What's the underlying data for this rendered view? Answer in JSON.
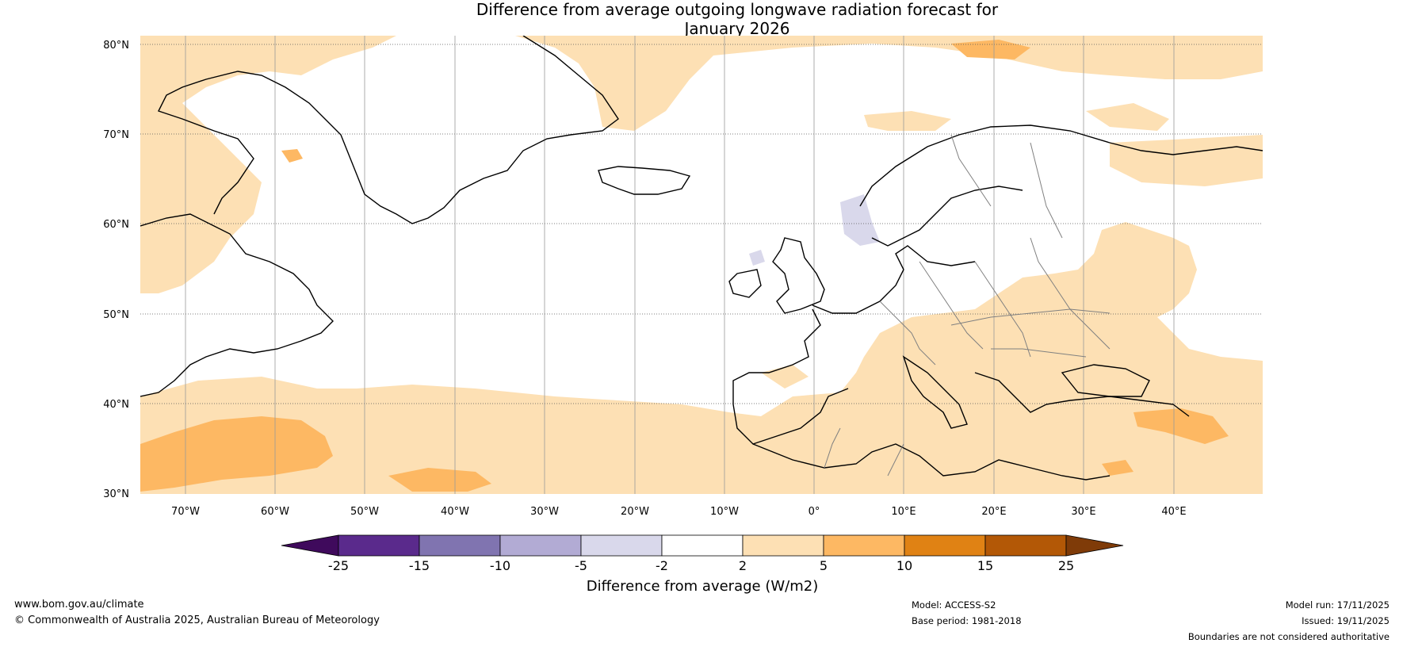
{
  "title": {
    "line1": "Difference from average outgoing longwave radiation forecast for",
    "line2": "January 2026"
  },
  "map": {
    "latitude_labels": [
      "80°N",
      "70°N",
      "60°N",
      "50°N",
      "40°N",
      "30°N"
    ],
    "longitude_labels": [
      "70°W",
      "60°W",
      "50°W",
      "40°W",
      "30°W",
      "20°W",
      "10°W",
      "0°",
      "10°E",
      "20°E",
      "30°E",
      "40°E"
    ]
  },
  "colorbar": {
    "label": "Difference from average (W/m2)",
    "ticks": [
      "-25",
      "-15",
      "-10",
      "-5",
      "-2",
      "2",
      "5",
      "10",
      "15",
      "25"
    ],
    "colors": [
      "#3f0a5c",
      "#5a2a8c",
      "#8074b0",
      "#b2abd4",
      "#d9d8eb",
      "#ffffff",
      "#fde0b4",
      "#fdb863",
      "#e08214",
      "#b35806",
      "#7f3b08"
    ]
  },
  "colors": {
    "land_outline": "#000000",
    "border_outline": "#808080",
    "light_orange": "#fde0b4",
    "mid_orange": "#fdb863",
    "light_purple": "#d9d8eb"
  },
  "footer": {
    "website": "www.bom.gov.au/climate",
    "copyright": "© Commonwealth of Australia 2025, Australian Bureau of Meteorology",
    "model": "Model: ACCESS-S2",
    "base_period": "Base period: 1981-2018",
    "model_run": "Model run: 17/11/2025",
    "issued": "Issued: 19/11/2025",
    "disclaimer": "Boundaries are not considered authoritative"
  }
}
